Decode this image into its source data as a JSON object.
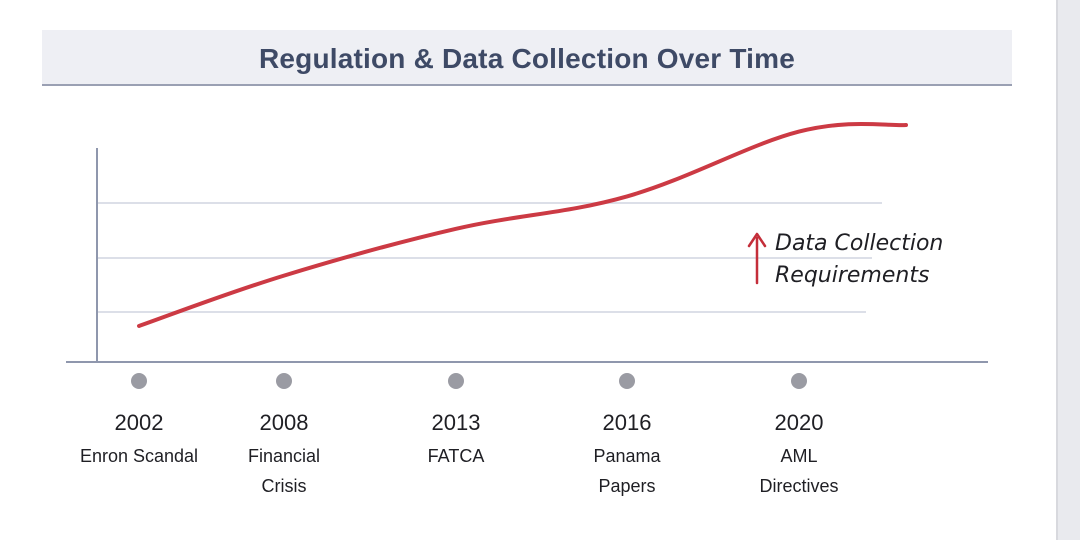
{
  "chart_data": {
    "type": "line",
    "title": "Regulation & Data Collection Over Time",
    "x": [
      "2002",
      "2008",
      "2013",
      "2016",
      "2020"
    ],
    "events": [
      [
        "Enron Scandal"
      ],
      [
        "Financial",
        "Crisis"
      ],
      [
        "FATCA"
      ],
      [
        "Panama",
        "Papers"
      ],
      [
        "AML",
        "Directives"
      ]
    ],
    "annotation": [
      "Data Collection",
      "Requirements"
    ],
    "series": [
      {
        "values": [
          1.0,
          2.4,
          3.7,
          4.6,
          6.4
        ]
      }
    ],
    "ylim": [
      0,
      7
    ],
    "grid": true,
    "colors": {
      "line": "#cc3a44",
      "axis": "#8f97ad",
      "grid": "#dcdfe8",
      "marker": "#9a9ba3",
      "arrow": "#c42e3a"
    }
  }
}
